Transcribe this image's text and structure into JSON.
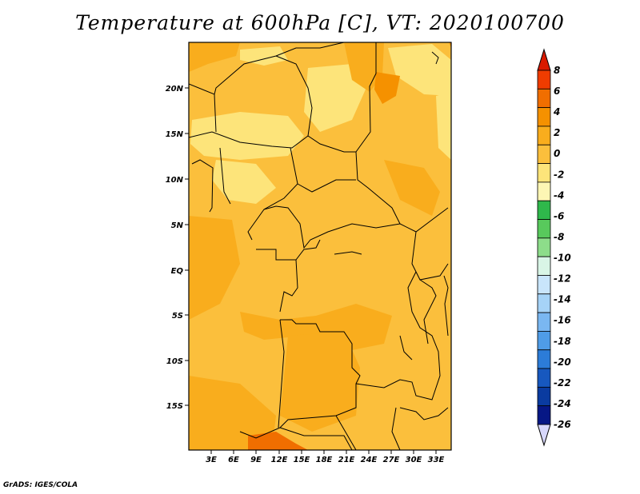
{
  "title": "Temperature at 600hPa [C], VT: 2020100700",
  "footer": "GrADS: IGES/COLA",
  "lat_ticks": [
    "20N",
    "15N",
    "10N",
    "5N",
    "EQ",
    "5S",
    "10S",
    "15S"
  ],
  "lon_ticks": [
    "3E",
    "6E",
    "9E",
    "12E",
    "15E",
    "18E",
    "21E",
    "24E",
    "27E",
    "30E",
    "33E"
  ],
  "colorbar": {
    "labels": [
      "8",
      "6",
      "4",
      "2",
      "0",
      "-2",
      "-4",
      "-6",
      "-8",
      "-10",
      "-12",
      "-14",
      "-16",
      "-18",
      "-20",
      "-22",
      "-24",
      "-26"
    ],
    "colors": [
      "#f03c00",
      "#f06e00",
      "#f59100",
      "#f9ad1d",
      "#fbbf3c",
      "#fde47a",
      "#fdf6b4",
      "#2fb84b",
      "#58c95c",
      "#8ddd8a",
      "#d9f5e6",
      "#c9e5fb",
      "#a6d3f7",
      "#7ab7f1",
      "#4f9ce7",
      "#2c7cd8",
      "#1758bf",
      "#0a3ba0",
      "#061785"
    ],
    "end_top_color": "#d91a00",
    "end_bottom_color": "#d7d7fb"
  }
}
